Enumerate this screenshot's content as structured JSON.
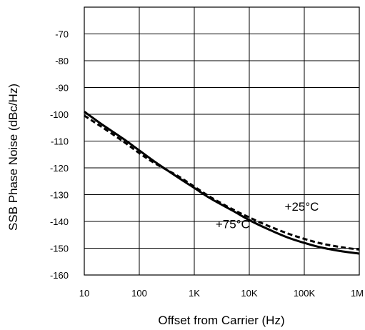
{
  "chart_data": {
    "type": "line",
    "title": "",
    "xlabel": "Offset from Carrier (Hz)",
    "ylabel": "SSB Phase Noise (dBc/Hz)",
    "x_scale": "log",
    "xlim": [
      10,
      1000000
    ],
    "ylim": [
      -160,
      -60
    ],
    "grid": true,
    "x_ticks": [
      10,
      100,
      1000,
      10000,
      100000,
      1000000
    ],
    "x_tick_labels": [
      "10",
      "100",
      "1K",
      "10K",
      "100K",
      "1M"
    ],
    "y_ticks": [
      -70,
      -80,
      -90,
      -100,
      -110,
      -120,
      -130,
      -140,
      -150,
      -160
    ],
    "y_tick_labels": [
      "-70",
      "-80",
      "-90",
      "-100",
      "-110",
      "-120",
      "-130",
      "-140",
      "-150",
      "-160"
    ],
    "series": [
      {
        "name": "+75°C",
        "style": "solid",
        "color": "#000000",
        "x": [
          10,
          20,
          50,
          100,
          200,
          500,
          1000,
          2000,
          5000,
          10000,
          20000,
          50000,
          100000,
          200000,
          500000,
          1000000
        ],
        "y": [
          -99,
          -103.5,
          -109,
          -113.5,
          -118,
          -123.5,
          -127.5,
          -131.5,
          -136,
          -139.5,
          -142.5,
          -146,
          -148,
          -149.7,
          -151.2,
          -152
        ]
      },
      {
        "name": "+25°C",
        "style": "dashed",
        "color": "#000000",
        "x": [
          10,
          20,
          50,
          100,
          200,
          500,
          1000,
          2000,
          5000,
          10000,
          20000,
          50000,
          100000,
          200000,
          500000,
          1000000
        ],
        "y": [
          -100.5,
          -104.5,
          -110,
          -114.5,
          -118.5,
          -123,
          -127,
          -131,
          -135.5,
          -138.5,
          -141.3,
          -144.5,
          -146.5,
          -148.2,
          -149.7,
          -150.5
        ]
      }
    ],
    "annotations": [
      {
        "text": "+25°C",
        "x": 90000,
        "y": -136
      },
      {
        "text": "+75°C",
        "x": 5000,
        "y": -142.5
      }
    ]
  }
}
